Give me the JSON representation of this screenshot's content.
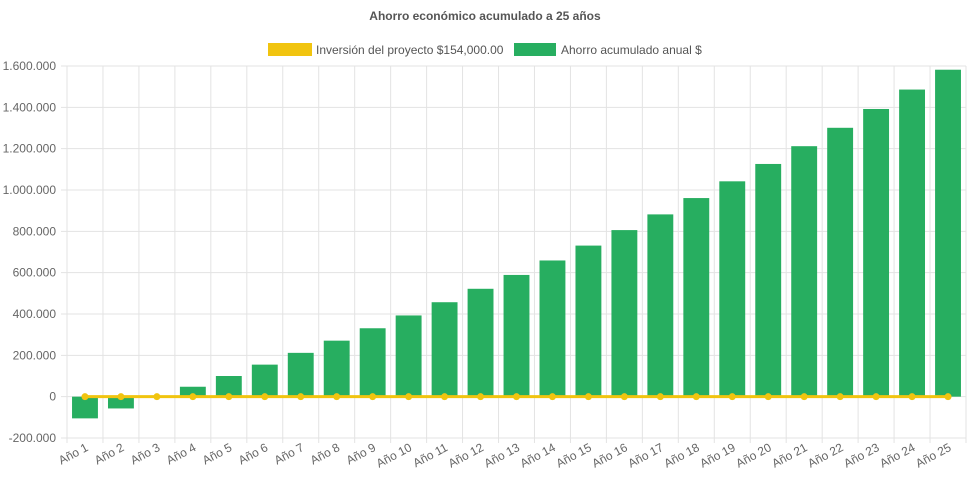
{
  "chart_data": {
    "type": "bar",
    "title": "Ahorro económico acumulado a 25 años",
    "xlabel": "",
    "ylabel": "",
    "ylim": [
      -200000,
      1600000
    ],
    "ytick_step": 200000,
    "ytick_labels": [
      "-200.000",
      "0",
      "200.000",
      "400.000",
      "600.000",
      "800.000",
      "1.000.000",
      "1.200.000",
      "1.400.000",
      "1.600.000"
    ],
    "grid": true,
    "legend_position": "top",
    "categories": [
      "Año 1",
      "Año 2",
      "Año 3",
      "Año 4",
      "Año 5",
      "Año 6",
      "Año 7",
      "Año 8",
      "Año 9",
      "Año 10",
      "Año 11",
      "Año 12",
      "Año 13",
      "Año 14",
      "Año 15",
      "Año 16",
      "Año 17",
      "Año 18",
      "Año 19",
      "Año 20",
      "Año 21",
      "Año 22",
      "Año 23",
      "Año 24",
      "Año 25"
    ],
    "series": [
      {
        "name": "Inversión del proyecto $154,000.00",
        "type": "line",
        "color": "#f1c40f",
        "values": [
          0,
          0,
          0,
          0,
          0,
          0,
          0,
          0,
          0,
          0,
          0,
          0,
          0,
          0,
          0,
          0,
          0,
          0,
          0,
          0,
          0,
          0,
          0,
          0,
          0
        ]
      },
      {
        "name": "Ahorro acumulado anual $",
        "type": "bar",
        "color": "#27ae60",
        "values": [
          -105000,
          -57000,
          0,
          48000,
          100000,
          155000,
          212000,
          271000,
          331000,
          393000,
          457000,
          522000,
          589000,
          659000,
          731000,
          806000,
          882000,
          961000,
          1042000,
          1126000,
          1212000,
          1301000,
          1392000,
          1486000,
          1582000
        ]
      }
    ]
  }
}
